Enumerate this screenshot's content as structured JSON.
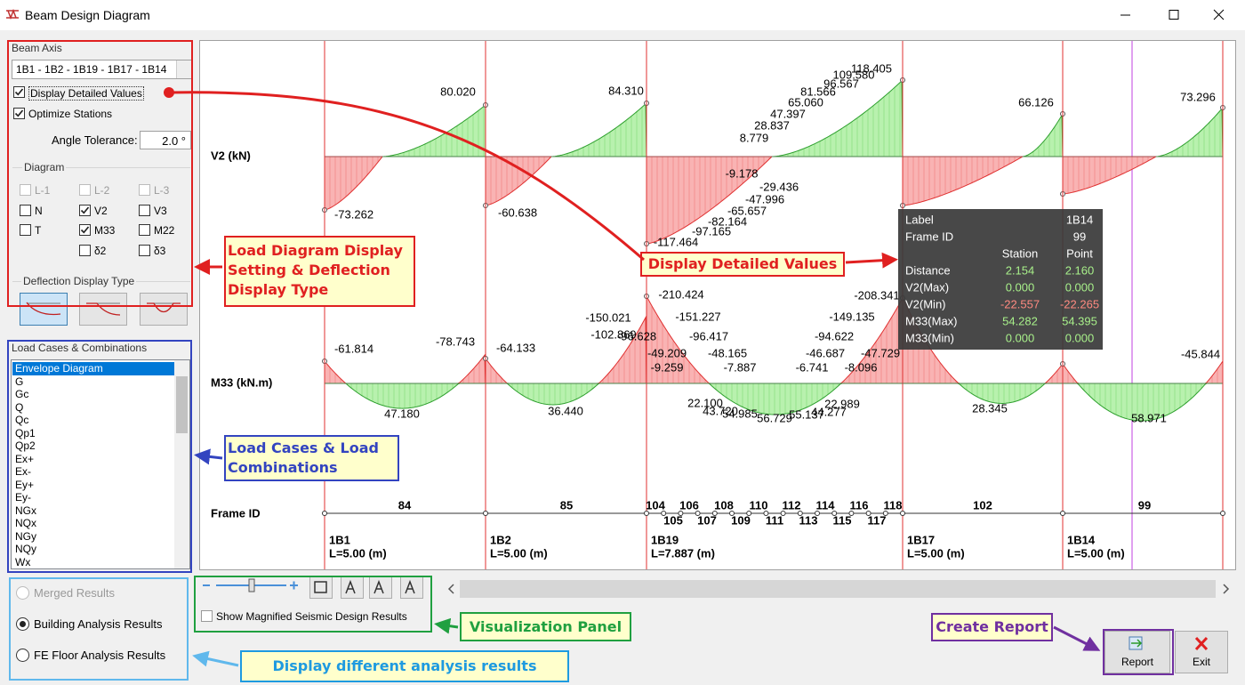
{
  "window": {
    "title": "Beam Design Diagram"
  },
  "beam_axis": {
    "label": "Beam Axis",
    "value": "1B1 - 1B2 - 1B19 - 1B17 - 1B14"
  },
  "options": [
    {
      "label": "Display Detailed Values",
      "checked": true
    },
    {
      "label": "Optimize Stations",
      "checked": true
    }
  ],
  "angle_tolerance": {
    "label": "Angle Tolerance:",
    "value": "2.0 °"
  },
  "diagram": {
    "label": "Diagram",
    "items": [
      {
        "label": "L-1",
        "checked": false,
        "enabled": false
      },
      {
        "label": "L-2",
        "checked": false,
        "enabled": false
      },
      {
        "label": "L-3",
        "checked": false,
        "enabled": false
      },
      {
        "label": "N",
        "checked": false,
        "enabled": true
      },
      {
        "label": "V2",
        "checked": true,
        "enabled": true
      },
      {
        "label": "V3",
        "checked": false,
        "enabled": true
      },
      {
        "label": "T",
        "checked": false,
        "enabled": true
      },
      {
        "label": "M33",
        "checked": true,
        "enabled": true
      },
      {
        "label": "M22",
        "checked": false,
        "enabled": true
      },
      {
        "label": "δ2",
        "checked": false,
        "enabled": true
      },
      {
        "label": "δ3",
        "checked": false,
        "enabled": true
      }
    ]
  },
  "deflection": {
    "label": "Deflection Display Type",
    "selected": 0
  },
  "load_cases": {
    "label": "Load Cases & Combinations",
    "selected": 0,
    "items": [
      "Envelope Diagram",
      "G",
      "Gc",
      "Q",
      "Qc",
      "Qp1",
      "Qp2",
      "Ex+",
      "Ex-",
      "Ey+",
      "Ey-",
      "NGx",
      "NQx",
      "NGy",
      "NQy",
      "Wx"
    ]
  },
  "results": {
    "selected": 1,
    "options": [
      {
        "label": "Merged Results",
        "enabled": false
      },
      {
        "label": "Building Analysis Results",
        "enabled": true
      },
      {
        "label": "FE Floor Analysis Results",
        "enabled": true
      }
    ]
  },
  "toolbar": {
    "magnified": "Show Magnified Seismic Design Results"
  },
  "buttons": [
    "Report",
    "Exit"
  ],
  "plot": {
    "rows": [
      "V2 (kN)",
      "M33 (kN.m)",
      "Frame ID"
    ],
    "v2_labels": [
      "80.020",
      "84.310",
      "66.126",
      "73.296",
      "8.779",
      "28.837",
      "47.397",
      "65.060",
      "81.566",
      "96.567",
      "109.580",
      "118.405",
      "-73.262",
      "-60.638",
      "-9.178",
      "-29.436",
      "-47.996",
      "-65.657",
      "-82.164",
      "-97.165",
      "-117.464"
    ],
    "m33_labels": [
      "-61.814",
      "-78.743",
      "-64.133",
      "47.180",
      "36.440",
      "-210.424",
      "-150.021",
      "-151.227",
      "-102.869",
      "-96.628",
      "-96.417",
      "-49.209",
      "-48.165",
      "-9.259",
      "-7.887",
      "22.100",
      "43.720",
      "54.985",
      "56.729",
      "55.137",
      "44.277",
      "22.989",
      "-6.741",
      "-8.096",
      "-46.687",
      "-47.729",
      "-94.622",
      "-149.135",
      "-208.341",
      "28.345",
      "58.971",
      "-45.844"
    ],
    "frame_ids": [
      "84",
      "85",
      "104",
      "105",
      "106",
      "107",
      "108",
      "109",
      "110",
      "111",
      "112",
      "113",
      "114",
      "115",
      "116",
      "117",
      "118",
      "102",
      "99"
    ],
    "beams": [
      {
        "name": "1B1",
        "length": "L=5.00 (m)"
      },
      {
        "name": "1B2",
        "length": "L=5.00 (m)"
      },
      {
        "name": "1B19",
        "length": "L=7.887 (m)"
      },
      {
        "name": "1B17",
        "length": "L=5.00 (m)"
      },
      {
        "name": "1B14",
        "length": "L=5.00 (m)"
      }
    ]
  },
  "tooltip": {
    "label_key": "Label",
    "label_value": "1B14",
    "frame_key": "Frame ID",
    "frame_value": "99",
    "columns": [
      "Station",
      "Point"
    ],
    "rows": [
      {
        "name": "Distance",
        "values": [
          "2.154",
          "2.160"
        ],
        "color": "#a8f08a"
      },
      {
        "name": "V2(Max)",
        "values": [
          "0.000",
          "0.000"
        ],
        "color": "#a8f08a"
      },
      {
        "name": "V2(Min)",
        "values": [
          "-22.557",
          "-22.265"
        ],
        "color": "#ff8a80"
      },
      {
        "name": "M33(Max)",
        "values": [
          "54.282",
          "54.395"
        ],
        "color": "#a8f08a"
      },
      {
        "name": "M33(Min)",
        "values": [
          "0.000",
          "0.000"
        ],
        "color": "#a8f08a"
      }
    ]
  },
  "annotations": [
    "Load Diagram Display Setting & Deflection Display Type",
    "Display Detailed Values",
    "Load Cases & Load Combinations",
    "Visualization Panel",
    "Display different analysis results",
    "Create Report"
  ]
}
